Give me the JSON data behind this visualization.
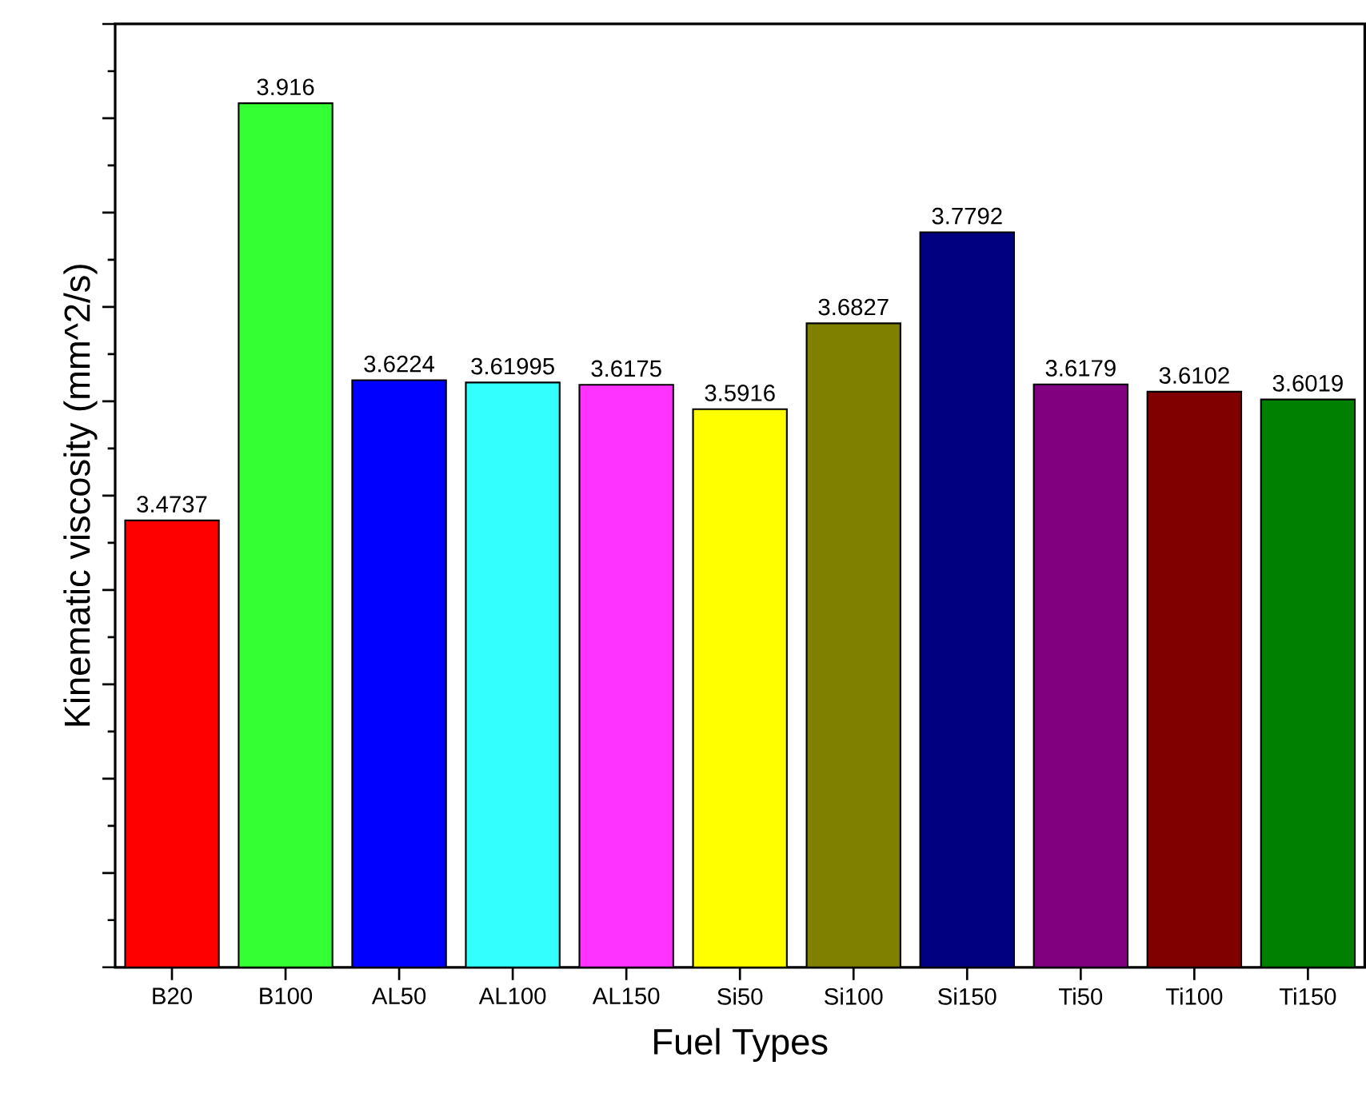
{
  "chart_data": {
    "type": "bar",
    "xlabel": "Fuel Types",
    "ylabel": "Kinematic viscosity (mm^2/s)",
    "categories": [
      "B20",
      "B100",
      "AL50",
      "AL100",
      "AL150",
      "Si50",
      "Si100",
      "Si150",
      "Ti50",
      "Ti100",
      "Ti150"
    ],
    "values": [
      3.4737,
      3.916,
      3.6224,
      3.61995,
      3.6175,
      3.5916,
      3.6827,
      3.7792,
      3.6179,
      3.6102,
      3.6019
    ],
    "colors": [
      "#ff0000",
      "#33ff33",
      "#0000ff",
      "#33ffff",
      "#ff33ff",
      "#ffff00",
      "#808000",
      "#000080",
      "#800080",
      "#800000",
      "#008000"
    ],
    "ylim": [
      3.0,
      4.0
    ],
    "yticks": [
      {
        "value": 3.0,
        "label": null
      },
      {
        "value": 3.1,
        "label": null
      },
      {
        "value": 3.2,
        "label": null
      },
      {
        "value": 3.3,
        "label": null
      },
      {
        "value": 3.4,
        "label": null
      },
      {
        "value": 3.5,
        "label": null
      },
      {
        "value": 3.6,
        "label": null
      },
      {
        "value": 3.7,
        "label": null
      },
      {
        "value": 3.8,
        "label": null
      },
      {
        "value": 3.9,
        "label": null
      },
      {
        "value": 4.0,
        "label": null
      }
    ],
    "tick_labels": "x",
    "data_labels": true
  }
}
